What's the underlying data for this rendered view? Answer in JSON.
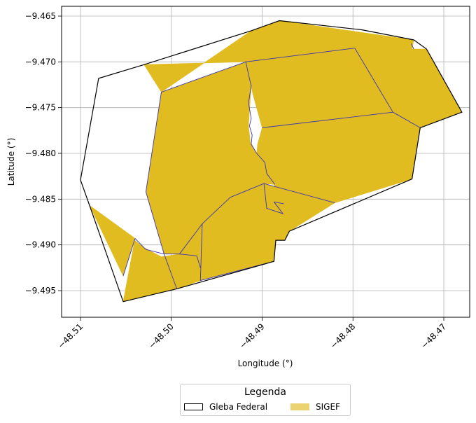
{
  "chart_data": {
    "type": "map",
    "xlabel": "Longitude (°)",
    "ylabel": "Latitude (°)",
    "xlim": [
      -48.5115,
      -48.467
    ],
    "ylim": [
      -9.498,
      -9.4642
    ],
    "xticks": [
      -48.51,
      -48.5,
      -48.49,
      -48.48,
      -48.47
    ],
    "xtick_labels": [
      "−48.51",
      "−48.50",
      "−48.49",
      "−48.48",
      "−48.47"
    ],
    "yticks": [
      -9.465,
      -9.47,
      -9.475,
      -9.48,
      -9.485,
      -9.49,
      -9.495
    ],
    "ytick_labels": [
      "−9.465",
      "−9.470",
      "−9.475",
      "−9.480",
      "−9.485",
      "−9.490",
      "−9.495"
    ],
    "grid": true,
    "legend": {
      "title": "Legenda",
      "placement": "bottom-center",
      "entries": [
        {
          "label": "Gleba Federal",
          "style": "outline"
        },
        {
          "label": "SIGEF",
          "style": "fill"
        }
      ]
    },
    "colors": {
      "sigef_fill": "#e0bc20",
      "sigef_edge": "#3a34b4",
      "gleba_edge": "#000000",
      "grid": "#b0b0b0"
    },
    "gleba_federal": [
      [
        -48.4881,
        -9.4655
      ],
      [
        -48.479,
        -9.4665
      ],
      [
        -48.4733,
        -9.4676
      ],
      [
        -48.4719,
        -9.4686
      ],
      [
        -48.468,
        -9.4755
      ],
      [
        -48.4726,
        -9.4772
      ],
      [
        -48.4735,
        -9.4828
      ],
      [
        -48.487,
        -9.4885
      ],
      [
        -48.4875,
        -9.4895
      ],
      [
        -48.4885,
        -9.4895
      ],
      [
        -48.4887,
        -9.4918
      ],
      [
        -48.4994,
        -9.4948
      ],
      [
        -48.5053,
        -9.4962
      ],
      [
        -48.509,
        -9.4857
      ],
      [
        -48.51,
        -9.4829
      ],
      [
        -48.508,
        -9.4718
      ],
      [
        -48.503,
        -9.4703
      ],
      [
        -48.4912,
        -9.4666
      ]
    ],
    "sigef_parcels": [
      [
        [
          -48.4881,
          -9.4655
        ],
        [
          -48.4733,
          -9.4676
        ],
        [
          -48.4735,
          -9.4686
        ],
        [
          -48.4797,
          -9.4685
        ],
        [
          -48.4918,
          -9.47
        ],
        [
          -48.503,
          -9.4703
        ],
        [
          -48.5011,
          -9.4733
        ],
        [
          -48.4912,
          -9.4666
        ]
      ],
      [
        [
          -48.5011,
          -9.4733
        ],
        [
          -48.4918,
          -9.47
        ],
        [
          -48.4912,
          -9.4725
        ],
        [
          -48.4915,
          -9.477
        ],
        [
          -48.4913,
          -9.4788
        ],
        [
          -48.4906,
          -9.48
        ],
        [
          -48.4895,
          -9.481
        ],
        [
          -48.4886,
          -9.4834
        ],
        [
          -48.4898,
          -9.4833
        ],
        [
          -48.4935,
          -9.4848
        ],
        [
          -48.4966,
          -9.4877
        ],
        [
          -48.4991,
          -9.491
        ],
        [
          -48.5008,
          -9.491
        ],
        [
          -48.5028,
          -9.4842
        ]
      ],
      [
        [
          -48.4918,
          -9.47
        ],
        [
          -48.4797,
          -9.4685
        ],
        [
          -48.4756,
          -9.4755
        ],
        [
          -48.49,
          -9.4772
        ],
        [
          -48.491,
          -9.4736
        ]
      ],
      [
        [
          -48.4797,
          -9.4685
        ],
        [
          -48.4733,
          -9.4686
        ],
        [
          -48.4719,
          -9.4686
        ],
        [
          -48.468,
          -9.4755
        ],
        [
          -48.4726,
          -9.4772
        ],
        [
          -48.4756,
          -9.4755
        ]
      ],
      [
        [
          -48.49,
          -9.4772
        ],
        [
          -48.4756,
          -9.4755
        ],
        [
          -48.4726,
          -9.4772
        ],
        [
          -48.4735,
          -9.4828
        ],
        [
          -48.482,
          -9.4854
        ],
        [
          -48.4884,
          -9.4843
        ],
        [
          -48.4887,
          -9.4834
        ],
        [
          -48.4896,
          -9.4809
        ],
        [
          -48.4906,
          -9.4801
        ],
        [
          -48.4905,
          -9.479
        ]
      ],
      [
        [
          -48.4898,
          -9.4833
        ],
        [
          -48.482,
          -9.4854
        ],
        [
          -48.487,
          -9.4885
        ],
        [
          -48.4875,
          -9.4895
        ],
        [
          -48.4885,
          -9.4895
        ],
        [
          -48.4887,
          -9.4918
        ],
        [
          -48.4968,
          -9.4939
        ],
        [
          -48.4966,
          -9.4877
        ],
        [
          -48.4935,
          -9.4848
        ]
      ],
      [
        [
          -48.4966,
          -9.4877
        ],
        [
          -48.4968,
          -9.4939
        ],
        [
          -48.4994,
          -9.4948
        ],
        [
          -48.5011,
          -9.4913
        ],
        [
          -48.4991,
          -9.491
        ]
      ],
      [
        [
          -48.509,
          -9.4857
        ],
        [
          -48.504,
          -9.4893
        ],
        [
          -48.5053,
          -9.4962
        ],
        [
          -48.4994,
          -9.4948
        ],
        [
          -48.5011,
          -9.4913
        ],
        [
          -48.503,
          -9.4903
        ]
      ],
      [
        [
          -48.509,
          -9.4857
        ],
        [
          -48.504,
          -9.4893
        ],
        [
          -48.5053,
          -9.4934
        ]
      ]
    ],
    "parcel_boundaries": [
      [
        [
          -48.4798,
          -9.4685
        ],
        [
          -48.4918,
          -9.47
        ],
        [
          -48.5011,
          -9.4733
        ],
        [
          -48.5028,
          -9.4842
        ],
        [
          -48.5008,
          -9.491
        ]
      ],
      [
        [
          -48.4918,
          -9.47
        ],
        [
          -48.4914,
          -9.4718
        ],
        [
          -48.4912,
          -9.4726
        ],
        [
          -48.4915,
          -9.4745
        ],
        [
          -48.4912,
          -9.4762
        ],
        [
          -48.4914,
          -9.477
        ],
        [
          -48.4911,
          -9.478
        ],
        [
          -48.4912,
          -9.479
        ],
        [
          -48.4906,
          -9.48
        ],
        [
          -48.4897,
          -9.481
        ],
        [
          -48.4895,
          -9.4822
        ],
        [
          -48.4886,
          -9.4834
        ]
      ],
      [
        [
          -48.4798,
          -9.4685
        ],
        [
          -48.4756,
          -9.4755
        ],
        [
          -48.4726,
          -9.4772
        ]
      ],
      [
        [
          -48.49,
          -9.4772
        ],
        [
          -48.4756,
          -9.4755
        ]
      ],
      [
        [
          -48.4733,
          -9.4686
        ],
        [
          -48.4736,
          -9.468
        ]
      ],
      [
        [
          -48.4898,
          -9.4833
        ],
        [
          -48.4935,
          -9.4848
        ],
        [
          -48.4966,
          -9.4877
        ],
        [
          -48.4991,
          -9.491
        ],
        [
          -48.5008,
          -9.491
        ]
      ],
      [
        [
          -48.4898,
          -9.4833
        ],
        [
          -48.482,
          -9.4854
        ]
      ],
      [
        [
          -48.4898,
          -9.4833
        ],
        [
          -48.4895,
          -9.486
        ],
        [
          -48.4877,
          -9.4866
        ],
        [
          -48.4887,
          -9.4853
        ],
        [
          -48.4876,
          -9.4855
        ]
      ],
      [
        [
          -48.4966,
          -9.4877
        ],
        [
          -48.4968,
          -9.4939
        ],
        [
          -48.4887,
          -9.4918
        ]
      ],
      [
        [
          -48.4991,
          -9.491
        ],
        [
          -48.4972,
          -9.4912
        ],
        [
          -48.4968,
          -9.4925
        ]
      ],
      [
        [
          -48.504,
          -9.4893
        ],
        [
          -48.5053,
          -9.4934
        ]
      ],
      [
        [
          -48.504,
          -9.4893
        ],
        [
          -48.5028,
          -9.4905
        ],
        [
          -48.5008,
          -9.491
        ],
        [
          -48.4994,
          -9.4948
        ]
      ]
    ]
  }
}
